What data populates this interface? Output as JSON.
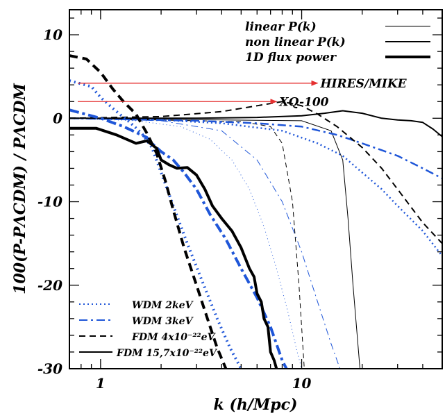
{
  "chart_data": {
    "type": "line",
    "xlabel": "k (h/Mpc)",
    "ylabel": "100(P-PΛCDM) / PΛCDM",
    "x_scale": "log",
    "xlim": [
      0.7,
      50
    ],
    "ylim": [
      -30,
      13
    ],
    "x_ticks": [
      {
        "value": 1,
        "label": "1"
      },
      {
        "value": 10,
        "label": "10"
      }
    ],
    "y_ticks": [
      {
        "value": 10,
        "label": "10"
      },
      {
        "value": 0,
        "label": "0"
      },
      {
        "value": -10,
        "label": "-10"
      },
      {
        "value": -20,
        "label": "-20"
      },
      {
        "value": -30,
        "label": "-30"
      }
    ],
    "grid": false,
    "legend_style": [
      {
        "label": "linear P(k)",
        "style": "thin solid"
      },
      {
        "label": "non linear P(k)",
        "style": "medium solid"
      },
      {
        "label": "1D flux power",
        "style": "thick solid"
      }
    ],
    "legend_models": [
      {
        "label": "WDM 2keV",
        "color": "#1f56d8",
        "dash": "dotted"
      },
      {
        "label": "WDM 3keV",
        "color": "#1f56d8",
        "dash": "dash-dot"
      },
      {
        "label": "FDM 4x10⁻²²eV",
        "color": "#000000",
        "dash": "dashed"
      },
      {
        "label": "FDM 15,7x10⁻²²eV",
        "color": "#000000",
        "dash": "solid"
      }
    ],
    "annotations": [
      {
        "label": "HIRES/MIKE",
        "x_start": 0.77,
        "x_end": 12,
        "y": 4.2,
        "color": "#e53030"
      },
      {
        "label": "XQ-100",
        "x_start": 0.77,
        "x_end": 7.5,
        "y": 2.0,
        "color": "#e53030"
      }
    ],
    "series": [
      {
        "model": "WDM 2keV",
        "kind": "linear",
        "color": "#1f56d8",
        "dash": "1,4",
        "width": 1,
        "points": [
          [
            0.7,
            0
          ],
          [
            1.5,
            -0.3
          ],
          [
            2.5,
            -1
          ],
          [
            3.5,
            -2.5
          ],
          [
            4.5,
            -5
          ],
          [
            5.5,
            -8.5
          ],
          [
            6.5,
            -13
          ],
          [
            7.5,
            -18
          ],
          [
            8.5,
            -23
          ],
          [
            9.5,
            -28
          ],
          [
            10,
            -30
          ]
        ]
      },
      {
        "model": "WDM 3keV",
        "kind": "linear",
        "color": "#1f56d8",
        "dash": "10,5,2,5",
        "width": 1,
        "points": [
          [
            0.7,
            0
          ],
          [
            2,
            -0.3
          ],
          [
            4,
            -1.5
          ],
          [
            6,
            -5
          ],
          [
            8,
            -10
          ],
          [
            10,
            -16
          ],
          [
            12,
            -22
          ],
          [
            14,
            -27
          ],
          [
            15.5,
            -30
          ]
        ]
      },
      {
        "model": "FDM 4x10^-22 eV",
        "kind": "linear",
        "color": "#000000",
        "dash": "7,5",
        "width": 1,
        "points": [
          [
            0.7,
            0
          ],
          [
            5,
            -0.4
          ],
          [
            7,
            -1
          ],
          [
            8,
            -3
          ],
          [
            9,
            -10
          ],
          [
            9.7,
            -20
          ],
          [
            10.3,
            -30
          ]
        ]
      },
      {
        "model": "FDM 15,7x10^-22 eV",
        "kind": "linear",
        "color": "#000000",
        "dash": "",
        "width": 1,
        "points": [
          [
            0.7,
            0
          ],
          [
            10,
            -0.3
          ],
          [
            14,
            -1.5
          ],
          [
            16,
            -5
          ],
          [
            17,
            -12
          ],
          [
            18,
            -20
          ],
          [
            19.5,
            -30
          ]
        ]
      },
      {
        "model": "WDM 2keV",
        "kind": "non-linear",
        "color": "#1f56d8",
        "dash": "2,4",
        "width": 2.5,
        "points": [
          [
            0.7,
            0
          ],
          [
            2,
            -0.2
          ],
          [
            4,
            -0.6
          ],
          [
            8,
            -1.5
          ],
          [
            12,
            -3
          ],
          [
            16,
            -4.5
          ],
          [
            20,
            -6.5
          ],
          [
            25,
            -8.5
          ],
          [
            30,
            -10.5
          ],
          [
            40,
            -13.5
          ],
          [
            50,
            -16.5
          ]
        ]
      },
      {
        "model": "WDM 3keV",
        "kind": "non-linear",
        "color": "#1f56d8",
        "dash": "12,5,3,5",
        "width": 2.5,
        "points": [
          [
            0.7,
            0
          ],
          [
            3,
            -0.3
          ],
          [
            6,
            -0.6
          ],
          [
            10,
            -1
          ],
          [
            15,
            -2
          ],
          [
            20,
            -3
          ],
          [
            30,
            -4.5
          ],
          [
            40,
            -6
          ],
          [
            50,
            -7.2
          ]
        ]
      },
      {
        "model": "FDM 4x10^-22 eV",
        "kind": "non-linear",
        "color": "#000000",
        "dash": "9,6",
        "width": 2,
        "points": [
          [
            0.7,
            0
          ],
          [
            2,
            0.2
          ],
          [
            4,
            0.8
          ],
          [
            6,
            1.5
          ],
          [
            8,
            2
          ],
          [
            10,
            1.5
          ],
          [
            12,
            0.5
          ],
          [
            15,
            -1
          ],
          [
            20,
            -3.5
          ],
          [
            25,
            -6
          ],
          [
            30,
            -8.5
          ],
          [
            40,
            -12.5
          ],
          [
            50,
            -15
          ]
        ]
      },
      {
        "model": "FDM 15,7x10^-22 eV",
        "kind": "non-linear",
        "color": "#000000",
        "dash": "",
        "width": 2,
        "points": [
          [
            0.7,
            0
          ],
          [
            3,
            0
          ],
          [
            6,
            0.1
          ],
          [
            10,
            0.3
          ],
          [
            13,
            0.6
          ],
          [
            16,
            0.9
          ],
          [
            20,
            0.6
          ],
          [
            25,
            0
          ],
          [
            30,
            -0.2
          ],
          [
            35,
            -0.3
          ],
          [
            40,
            -0.5
          ],
          [
            45,
            -1.3
          ],
          [
            50,
            -2.2
          ]
        ]
      },
      {
        "model": "WDM 2keV",
        "kind": "1D flux power",
        "color": "#1f56d8",
        "dash": "2,5",
        "width": 4,
        "points": [
          [
            0.7,
            4.5
          ],
          [
            0.9,
            3.8
          ],
          [
            1.0,
            2.5
          ],
          [
            1.2,
            0.8
          ],
          [
            1.4,
            -0.5
          ],
          [
            1.6,
            -1.8
          ],
          [
            1.8,
            -3.5
          ],
          [
            2.0,
            -6.5
          ],
          [
            2.3,
            -10.5
          ],
          [
            2.7,
            -15
          ],
          [
            3.2,
            -19.5
          ],
          [
            3.8,
            -24
          ],
          [
            4.4,
            -27.5
          ],
          [
            5.0,
            -30
          ]
        ]
      },
      {
        "model": "WDM 3keV",
        "kind": "1D flux power",
        "color": "#1f56d8",
        "dash": "14,5,4,5",
        "width": 4,
        "points": [
          [
            0.7,
            1
          ],
          [
            1.0,
            0
          ],
          [
            1.3,
            -1
          ],
          [
            1.7,
            -2.3
          ],
          [
            1.8,
            -3
          ],
          [
            2.0,
            -4
          ],
          [
            2.3,
            -5
          ],
          [
            2.6,
            -6.5
          ],
          [
            3.0,
            -8.5
          ],
          [
            3.5,
            -11.5
          ],
          [
            4.2,
            -14.5
          ],
          [
            5.0,
            -18
          ],
          [
            6.0,
            -21.5
          ],
          [
            7.0,
            -25
          ],
          [
            8.0,
            -29
          ],
          [
            8.4,
            -30
          ]
        ]
      },
      {
        "model": "FDM 4x10^-22 eV",
        "kind": "1D flux power",
        "color": "#000000",
        "dash": "12,7",
        "width": 4,
        "points": [
          [
            0.7,
            7.5
          ],
          [
            0.85,
            7.1
          ],
          [
            1.0,
            5.5
          ],
          [
            1.15,
            3.5
          ],
          [
            1.3,
            2
          ],
          [
            1.5,
            0.5
          ],
          [
            1.7,
            -1.8
          ],
          [
            1.9,
            -4.2
          ],
          [
            2.1,
            -7.5
          ],
          [
            2.3,
            -11
          ],
          [
            2.6,
            -15.5
          ],
          [
            3.0,
            -20
          ],
          [
            3.4,
            -24
          ],
          [
            3.8,
            -27.5
          ],
          [
            4.2,
            -30
          ]
        ]
      },
      {
        "model": "FDM 15,7x10^-22 eV",
        "kind": "1D flux power",
        "color": "#000000",
        "dash": "",
        "width": 4,
        "points": [
          [
            0.7,
            -1.2
          ],
          [
            0.95,
            -1.2
          ],
          [
            1.2,
            -2
          ],
          [
            1.5,
            -3
          ],
          [
            1.7,
            -2.7
          ],
          [
            1.9,
            -3.6
          ],
          [
            2.0,
            -5
          ],
          [
            2.2,
            -5.6
          ],
          [
            2.4,
            -6
          ],
          [
            2.7,
            -5.9
          ],
          [
            3.0,
            -6.8
          ],
          [
            3.3,
            -8.5
          ],
          [
            3.6,
            -10.5
          ],
          [
            4.0,
            -12
          ],
          [
            4.5,
            -13.5
          ],
          [
            5.0,
            -15.5
          ],
          [
            5.5,
            -18
          ],
          [
            5.8,
            -19
          ],
          [
            6.0,
            -21
          ],
          [
            6.3,
            -22
          ],
          [
            6.5,
            -24
          ],
          [
            6.8,
            -25
          ],
          [
            7.0,
            -28
          ],
          [
            7.3,
            -29
          ],
          [
            7.5,
            -30
          ]
        ]
      }
    ]
  }
}
